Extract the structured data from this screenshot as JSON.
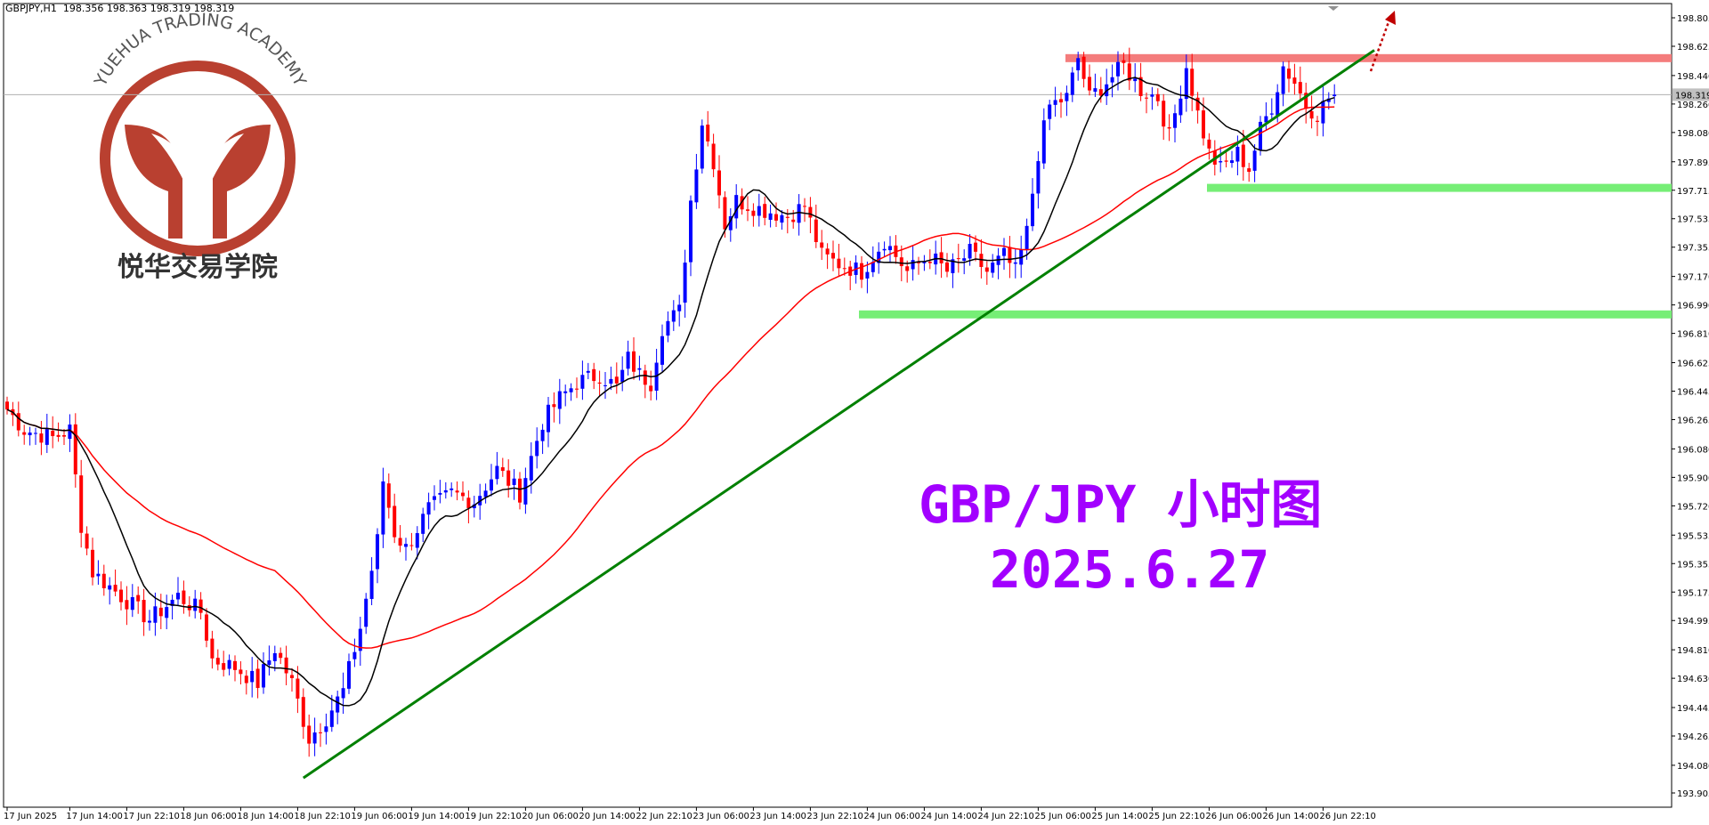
{
  "header": {
    "symbol": "GBPJPY,H1",
    "ohlc": "198.356 198.363 198.319 198.319"
  },
  "overlay": {
    "title": "GBP/JPY 小时图",
    "date": "2025.6.27"
  },
  "logo": {
    "arc_text": "YUEHUA TRADING ACADEMY",
    "cn_text": "悦华交易学院"
  },
  "colors": {
    "bull": "#0000ff",
    "bear": "#ff0000",
    "ma_fast": "#000000",
    "ma_slow": "#ff0000",
    "trendline": "#008000",
    "resistance": "#f47c7c",
    "support": "#76ee76",
    "text_accent": "#a200ff",
    "logo": "#b94030"
  },
  "chart_data": {
    "type": "candlestick",
    "symbol": "GBPJPY",
    "timeframe": "H1",
    "ylim": [
      193.815,
      198.895
    ],
    "current_price": "198.319",
    "y_ticks": [
      "198.805",
      "198.625",
      "198.440",
      "198.260",
      "198.080",
      "197.895",
      "197.715",
      "197.535",
      "197.355",
      "197.170",
      "196.990",
      "196.810",
      "196.625",
      "196.445",
      "196.265",
      "196.080",
      "195.900",
      "195.720",
      "195.535",
      "195.355",
      "195.175",
      "194.995",
      "194.810",
      "194.630",
      "194.445",
      "194.265",
      "194.080",
      "193.905"
    ],
    "x_ticks": [
      {
        "label": "17 Jun 2025",
        "i": 0
      },
      {
        "label": "17 Jun 14:00",
        "i": 11
      },
      {
        "label": "17 Jun 22:10",
        "i": 21
      },
      {
        "label": "18 Jun 06:00",
        "i": 31
      },
      {
        "label": "18 Jun 14:00",
        "i": 41
      },
      {
        "label": "18 Jun 22:10",
        "i": 51
      },
      {
        "label": "19 Jun 06:00",
        "i": 61
      },
      {
        "label": "19 Jun 14:00",
        "i": 71
      },
      {
        "label": "19 Jun 22:10",
        "i": 81
      },
      {
        "label": "20 Jun 06:00",
        "i": 91
      },
      {
        "label": "20 Jun 14:00",
        "i": 101
      },
      {
        "label": "22 Jun 22:10",
        "i": 111
      },
      {
        "label": "23 Jun 06:00",
        "i": 121
      },
      {
        "label": "23 Jun 14:00",
        "i": 131
      },
      {
        "label": "23 Jun 22:10",
        "i": 141
      },
      {
        "label": "24 Jun 06:00",
        "i": 151
      },
      {
        "label": "24 Jun 14:00",
        "i": 161
      },
      {
        "label": "24 Jun 22:10",
        "i": 171
      },
      {
        "label": "25 Jun 06:00",
        "i": 181
      },
      {
        "label": "25 Jun 14:00",
        "i": 191
      },
      {
        "label": "25 Jun 22:10",
        "i": 201
      },
      {
        "label": "26 Jun 06:00",
        "i": 211
      },
      {
        "label": "26 Jun 14:00",
        "i": 221
      },
      {
        "label": "26 Jun 22:10",
        "i": 231
      }
    ],
    "candle_count": 234,
    "close_anchors": [
      [
        0,
        196.33
      ],
      [
        3,
        196.2
      ],
      [
        8,
        196.15
      ],
      [
        11,
        196.2
      ],
      [
        13,
        195.6
      ],
      [
        15,
        195.3
      ],
      [
        20,
        195.15
      ],
      [
        25,
        195.0
      ],
      [
        30,
        195.15
      ],
      [
        34,
        195.05
      ],
      [
        36,
        194.75
      ],
      [
        40,
        194.7
      ],
      [
        44,
        194.6
      ],
      [
        47,
        194.82
      ],
      [
        50,
        194.6
      ],
      [
        53,
        194.25
      ],
      [
        56,
        194.38
      ],
      [
        59,
        194.55
      ],
      [
        62,
        194.95
      ],
      [
        65,
        195.5
      ],
      [
        66,
        195.88
      ],
      [
        68,
        195.55
      ],
      [
        70,
        195.45
      ],
      [
        74,
        195.7
      ],
      [
        78,
        195.8
      ],
      [
        82,
        195.75
      ],
      [
        86,
        195.95
      ],
      [
        90,
        195.8
      ],
      [
        94,
        196.25
      ],
      [
        97,
        196.4
      ],
      [
        100,
        196.5
      ],
      [
        104,
        196.55
      ],
      [
        107,
        196.47
      ],
      [
        109,
        196.65
      ],
      [
        111,
        196.55
      ],
      [
        113,
        196.5
      ],
      [
        115,
        196.85
      ],
      [
        118,
        196.95
      ],
      [
        120,
        197.65
      ],
      [
        122,
        198.15
      ],
      [
        124,
        197.9
      ],
      [
        126,
        197.5
      ],
      [
        128,
        197.65
      ],
      [
        132,
        197.6
      ],
      [
        137,
        197.55
      ],
      [
        140,
        197.62
      ],
      [
        143,
        197.3
      ],
      [
        146,
        197.25
      ],
      [
        150,
        197.2
      ],
      [
        154,
        197.4
      ],
      [
        158,
        197.2
      ],
      [
        162,
        197.3
      ],
      [
        165,
        197.2
      ],
      [
        169,
        197.32
      ],
      [
        172,
        197.2
      ],
      [
        175,
        197.3
      ],
      [
        177,
        197.2
      ],
      [
        179,
        197.45
      ],
      [
        181,
        197.95
      ],
      [
        183,
        198.25
      ],
      [
        186,
        198.3
      ],
      [
        188,
        198.55
      ],
      [
        190,
        198.3
      ],
      [
        193,
        198.4
      ],
      [
        196,
        198.5
      ],
      [
        199,
        198.35
      ],
      [
        202,
        198.3
      ],
      [
        204,
        198.05
      ],
      [
        207,
        198.5
      ],
      [
        209,
        198.2
      ],
      [
        211,
        197.95
      ],
      [
        213,
        197.85
      ],
      [
        216,
        197.95
      ],
      [
        218,
        197.85
      ],
      [
        220,
        198.1
      ],
      [
        222,
        198.25
      ],
      [
        224,
        198.5
      ],
      [
        226,
        198.4
      ],
      [
        228,
        198.25
      ],
      [
        230,
        198.2
      ],
      [
        232,
        198.3
      ],
      [
        233,
        198.319
      ]
    ],
    "levels": {
      "resistance": 198.55,
      "support_upper": 197.73,
      "support_lower": 196.93
    },
    "trendline": [
      [
        52,
        194.0
      ],
      [
        240,
        198.6
      ]
    ],
    "grid": false,
    "legend": "none"
  }
}
